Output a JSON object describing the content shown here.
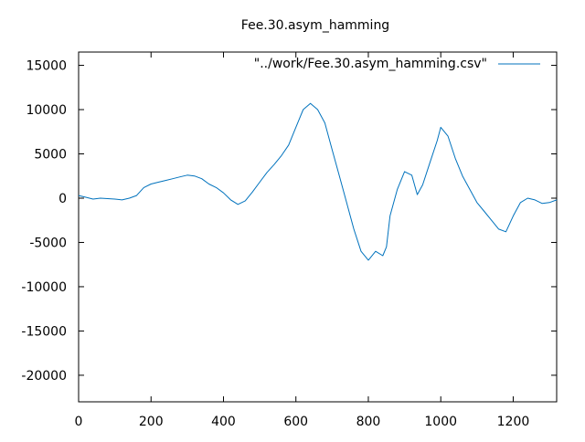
{
  "chart_data": {
    "type": "line",
    "title": "Fee.30.asym_hamming",
    "xlabel": "",
    "ylabel": "",
    "xlim": [
      0,
      1320
    ],
    "ylim": [
      -23000,
      16500
    ],
    "x_ticks": [
      0,
      200,
      400,
      600,
      800,
      1000,
      1200
    ],
    "y_ticks": [
      15000,
      10000,
      5000,
      0,
      -5000,
      -10000,
      -15000,
      -20000
    ],
    "grid": false,
    "legend_position": "top-right",
    "series": [
      {
        "name": "\"../work/Fee.30.asym_hamming.csv\"",
        "color": "#0072bd",
        "points": [
          [
            0,
            300
          ],
          [
            20,
            100
          ],
          [
            40,
            -100
          ],
          [
            60,
            0
          ],
          [
            80,
            -50
          ],
          [
            100,
            -100
          ],
          [
            120,
            -200
          ],
          [
            140,
            0
          ],
          [
            160,
            300
          ],
          [
            180,
            1200
          ],
          [
            200,
            1600
          ],
          [
            220,
            1800
          ],
          [
            240,
            2000
          ],
          [
            260,
            2200
          ],
          [
            280,
            2400
          ],
          [
            300,
            2600
          ],
          [
            320,
            2500
          ],
          [
            340,
            2200
          ],
          [
            360,
            1600
          ],
          [
            380,
            1200
          ],
          [
            400,
            600
          ],
          [
            420,
            -200
          ],
          [
            440,
            -700
          ],
          [
            460,
            -300
          ],
          [
            480,
            700
          ],
          [
            500,
            1800
          ],
          [
            520,
            2900
          ],
          [
            540,
            3800
          ],
          [
            560,
            4800
          ],
          [
            580,
            6000
          ],
          [
            600,
            8000
          ],
          [
            620,
            10000
          ],
          [
            640,
            10700
          ],
          [
            660,
            10000
          ],
          [
            680,
            8500
          ],
          [
            700,
            5500
          ],
          [
            720,
            2500
          ],
          [
            740,
            -500
          ],
          [
            760,
            -3500
          ],
          [
            780,
            -6000
          ],
          [
            800,
            -7000
          ],
          [
            820,
            -6000
          ],
          [
            840,
            -6500
          ],
          [
            850,
            -5500
          ],
          [
            860,
            -2000
          ],
          [
            880,
            1000
          ],
          [
            900,
            3000
          ],
          [
            920,
            2600
          ],
          [
            935,
            400
          ],
          [
            950,
            1500
          ],
          [
            970,
            4000
          ],
          [
            990,
            6500
          ],
          [
            1000,
            8000
          ],
          [
            1020,
            7000
          ],
          [
            1040,
            4500
          ],
          [
            1060,
            2500
          ],
          [
            1080,
            1000
          ],
          [
            1100,
            -500
          ],
          [
            1120,
            -1500
          ],
          [
            1140,
            -2500
          ],
          [
            1160,
            -3500
          ],
          [
            1180,
            -3800
          ],
          [
            1200,
            -2000
          ],
          [
            1220,
            -500
          ],
          [
            1240,
            0
          ],
          [
            1260,
            -200
          ],
          [
            1280,
            -600
          ],
          [
            1300,
            -500
          ],
          [
            1320,
            -200
          ]
        ]
      }
    ]
  }
}
